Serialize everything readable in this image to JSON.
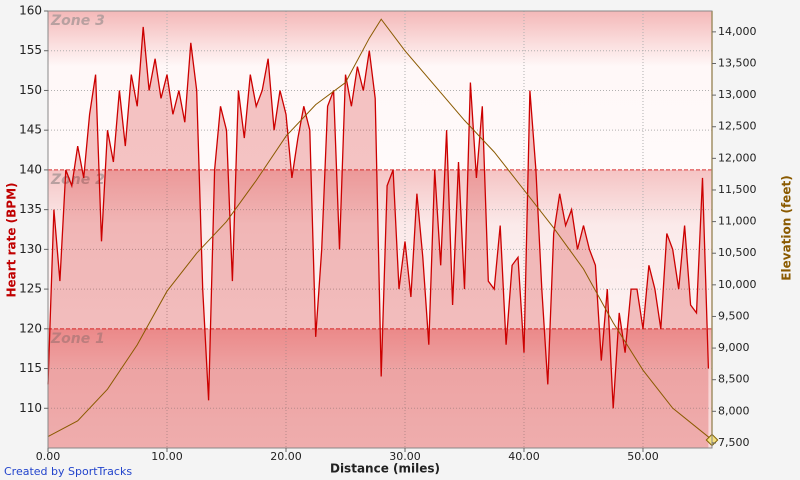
{
  "chart_data": {
    "type": "line",
    "x_label": "Distance (miles)",
    "y_label": "Heart rate (BPM)",
    "y2_label": "Elevation (feet)",
    "credit": "Created by SportTracks",
    "xlim": [
      0,
      55.8
    ],
    "xticks": [
      {
        "value": 0,
        "label": "0.00"
      },
      {
        "value": 10,
        "label": "10.00"
      },
      {
        "value": 20,
        "label": "20.00"
      },
      {
        "value": 30,
        "label": "30.00"
      },
      {
        "value": 40,
        "label": "40.00"
      },
      {
        "value": 50,
        "label": "50.00"
      }
    ],
    "ylim": [
      105,
      160
    ],
    "yticks": [
      110,
      115,
      120,
      125,
      130,
      135,
      140,
      145,
      150,
      155,
      160
    ],
    "y2lim": [
      7420,
      14330
    ],
    "y2ticks": [
      {
        "value": 7500,
        "label": "7,500"
      },
      {
        "value": 8000,
        "label": "8,000"
      },
      {
        "value": 8500,
        "label": "8,500"
      },
      {
        "value": 9000,
        "label": "9,000"
      },
      {
        "value": 9500,
        "label": "9,500"
      },
      {
        "value": 10000,
        "label": "10,000"
      },
      {
        "value": 10500,
        "label": "10,500"
      },
      {
        "value": 11000,
        "label": "11,000"
      },
      {
        "value": 11500,
        "label": "11,500"
      },
      {
        "value": 12000,
        "label": "12,000"
      },
      {
        "value": 12500,
        "label": "12,500"
      },
      {
        "value": 13000,
        "label": "13,000"
      },
      {
        "value": 13500,
        "label": "13,500"
      },
      {
        "value": 14000,
        "label": "14,000"
      }
    ],
    "grid": true,
    "zones": [
      {
        "label": "Zone 3",
        "value": 160
      },
      {
        "label": "Zone 2",
        "value": 140
      },
      {
        "label": "Zone 1",
        "value": 120
      }
    ],
    "series": [
      {
        "name": "Heart rate",
        "color": "#cc0000",
        "x": [
          0,
          0.5,
          1,
          1.5,
          2,
          2.5,
          3,
          3.5,
          4,
          4.5,
          5,
          5.5,
          6,
          6.5,
          7,
          7.5,
          8,
          8.5,
          9,
          9.5,
          10,
          10.5,
          11,
          11.5,
          12,
          12.5,
          13,
          13.5,
          14,
          14.5,
          15,
          15.5,
          16,
          16.5,
          17,
          17.5,
          18,
          18.5,
          19,
          19.5,
          20,
          20.5,
          21,
          21.5,
          22,
          22.5,
          23,
          23.5,
          24,
          24.5,
          25,
          25.5,
          26,
          26.5,
          27,
          27.5,
          28,
          28.5,
          29,
          29.5,
          30,
          30.5,
          31,
          31.5,
          32,
          32.5,
          33,
          33.5,
          34,
          34.5,
          35,
          35.5,
          36,
          36.5,
          37,
          37.5,
          38,
          38.5,
          39,
          39.5,
          40,
          40.5,
          41,
          41.5,
          42,
          42.5,
          43,
          43.5,
          44,
          44.5,
          45,
          45.5,
          46,
          46.5,
          47,
          47.5,
          48,
          48.5,
          49,
          49.5,
          50,
          50.5,
          51,
          51.5,
          52,
          52.5,
          53,
          53.5,
          54,
          54.5,
          55,
          55.5
        ],
        "values": [
          113,
          135,
          126,
          140,
          138,
          143,
          139,
          147,
          152,
          131,
          145,
          141,
          150,
          143,
          152,
          148,
          158,
          150,
          154,
          149,
          152,
          147,
          150,
          146,
          156,
          150,
          125,
          111,
          140,
          148,
          145,
          126,
          150,
          144,
          152,
          148,
          150,
          154,
          145,
          150,
          147,
          139,
          144,
          148,
          145,
          119,
          130,
          148,
          150,
          130,
          152,
          148,
          153,
          150,
          155,
          149,
          114,
          138,
          140,
          125,
          131,
          124,
          137,
          129,
          118,
          140,
          128,
          145,
          123,
          141,
          125,
          151,
          139,
          148,
          126,
          125,
          133,
          118,
          128,
          129,
          117,
          150,
          140,
          125,
          113,
          132,
          137,
          133,
          135,
          130,
          133,
          130,
          128,
          116,
          125,
          110,
          122,
          117,
          125,
          125,
          120,
          128,
          125,
          120,
          132,
          130,
          125,
          133,
          123,
          122,
          139,
          115
        ]
      },
      {
        "name": "Elevation",
        "color": "#8a5a00",
        "axis": "y2",
        "x": [
          0,
          2.5,
          5,
          7.5,
          10,
          12.5,
          15,
          17.5,
          20,
          22.5,
          25,
          27,
          28,
          30,
          32.5,
          35,
          37.5,
          40,
          42.5,
          45,
          47.5,
          50,
          52.5,
          55.8
        ],
        "values": [
          7600,
          7850,
          8350,
          9050,
          9900,
          10500,
          11000,
          11650,
          12350,
          12850,
          13200,
          13900,
          14200,
          13700,
          13150,
          12600,
          12100,
          11500,
          10900,
          10250,
          9400,
          8650,
          8050,
          7550
        ]
      }
    ]
  }
}
